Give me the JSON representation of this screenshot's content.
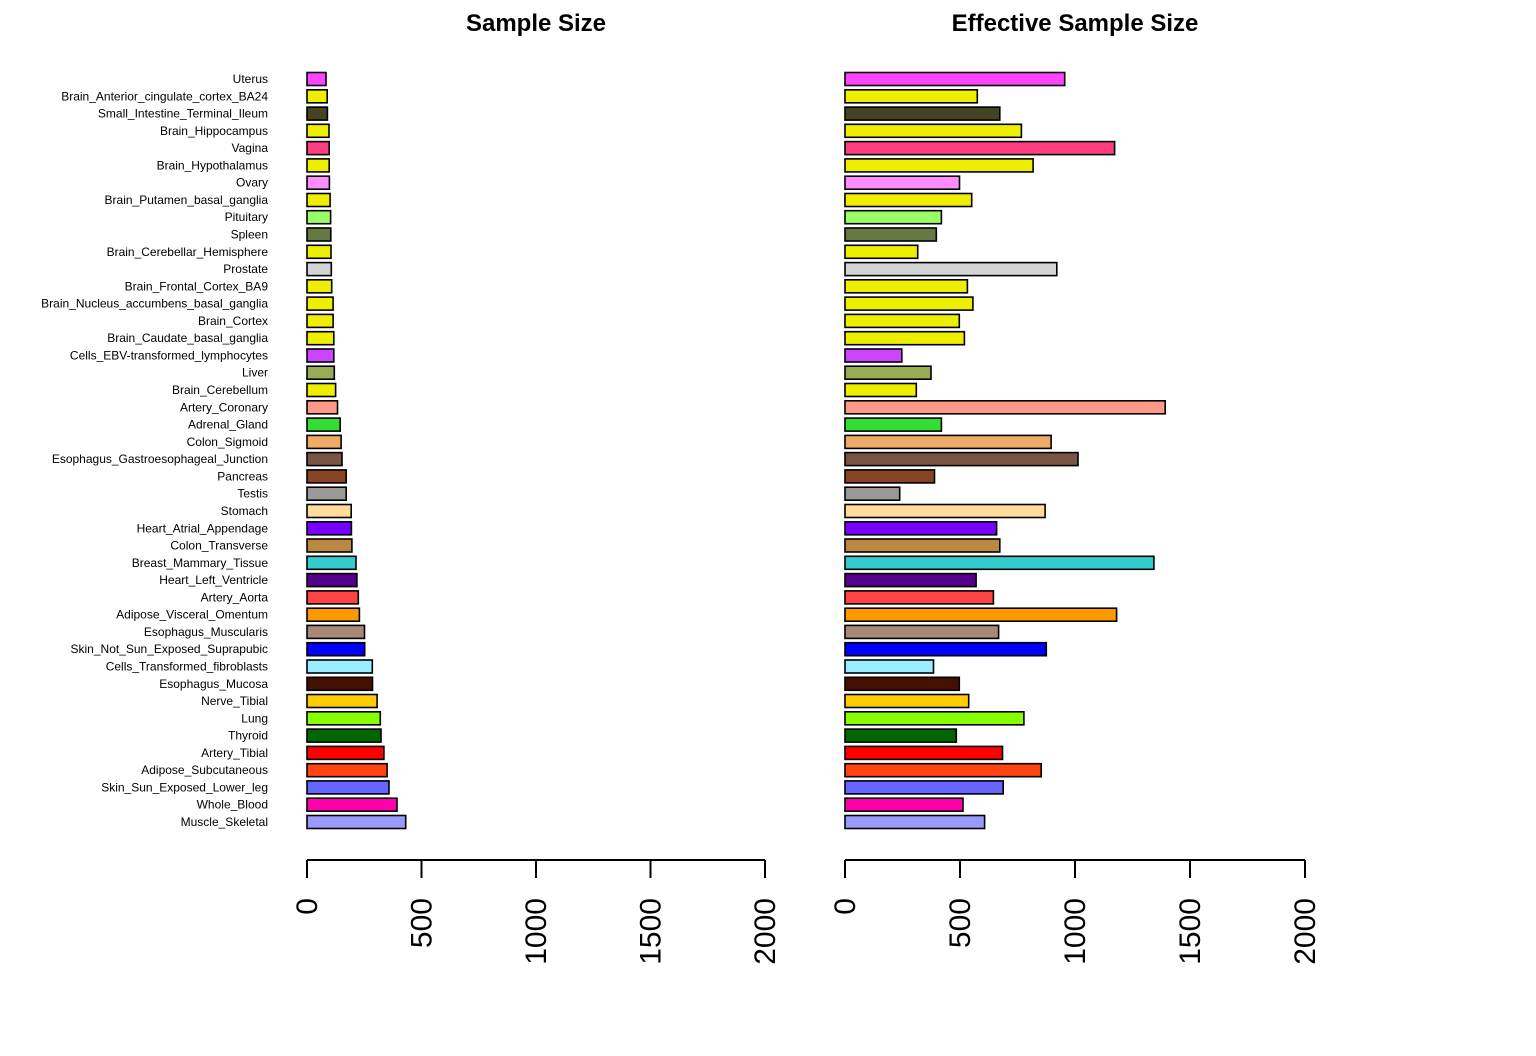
{
  "chart_data": [
    {
      "type": "bar",
      "orientation": "horizontal",
      "title": "Sample Size",
      "xlim": [
        0,
        2000
      ],
      "xticks": [
        0,
        500,
        1000,
        1500,
        2000
      ],
      "xtick_labels": [
        "0",
        "500",
        "1000",
        "1500",
        "2000"
      ],
      "grid": false,
      "categories": [
        "Uterus",
        "Brain_Anterior_cingulate_cortex_BA24",
        "Small_Intestine_Terminal_Ileum",
        "Brain_Hippocampus",
        "Vagina",
        "Brain_Hypothalamus",
        "Ovary",
        "Brain_Putamen_basal_ganglia",
        "Pituitary",
        "Spleen",
        "Brain_Cerebellar_Hemisphere",
        "Prostate",
        "Brain_Frontal_Cortex_BA9",
        "Brain_Nucleus_accumbens_basal_ganglia",
        "Brain_Cortex",
        "Brain_Caudate_basal_ganglia",
        "Cells_EBV-transformed_lymphocytes",
        "Liver",
        "Brain_Cerebellum",
        "Artery_Coronary",
        "Adrenal_Gland",
        "Colon_Sigmoid",
        "Esophagus_Gastroesophageal_Junction",
        "Pancreas",
        "Testis",
        "Stomach",
        "Heart_Atrial_Appendage",
        "Colon_Transverse",
        "Breast_Mammary_Tissue",
        "Heart_Left_Ventricle",
        "Artery_Aorta",
        "Adipose_Visceral_Omentum",
        "Esophagus_Muscularis",
        "Skin_Not_Sun_Exposed_Suprapubic",
        "Cells_Transformed_fibroblasts",
        "Esophagus_Mucosa",
        "Nerve_Tibial",
        "Lung",
        "Thyroid",
        "Artery_Tibial",
        "Adipose_Subcutaneous",
        "Skin_Sun_Exposed_Lower_leg",
        "Whole_Blood",
        "Muscle_Skeletal"
      ],
      "values": [
        83,
        88,
        89,
        96,
        97,
        97,
        98,
        101,
        103,
        104,
        105,
        106,
        108,
        114,
        114,
        117,
        117,
        119,
        125,
        133,
        145,
        149,
        153,
        171,
        171,
        193,
        194,
        196,
        214,
        218,
        224,
        229,
        251,
        252,
        285,
        286,
        306,
        320,
        323,
        336,
        350,
        358,
        393,
        431
      ],
      "colors": [
        "#FF44FF",
        "#EEEE00",
        "#444422",
        "#EEEE00",
        "#FF3E7F",
        "#EEEE00",
        "#FF8CFF",
        "#EEEE00",
        "#99FF66",
        "#667744",
        "#EEEE00",
        "#D4D4D4",
        "#EEEE00",
        "#EEEE00",
        "#EEEE00",
        "#EEEE00",
        "#CC44FF",
        "#99AA55",
        "#EEEE00",
        "#FF9988",
        "#33DD33",
        "#EEAA66",
        "#775544",
        "#884422",
        "#999999",
        "#FFDD99",
        "#7700FF",
        "#BB8844",
        "#33CCCC",
        "#550088",
        "#FF4444",
        "#FF9900",
        "#AA8877",
        "#0000FF",
        "#99EEFF",
        "#441100",
        "#FFCC00",
        "#88FF00",
        "#006600",
        "#FF0000",
        "#FF4411",
        "#6666FF",
        "#FF00AA",
        "#9999FF"
      ]
    },
    {
      "type": "bar",
      "orientation": "horizontal",
      "title": "Effective Sample Size",
      "xlim": [
        0,
        2000
      ],
      "xticks": [
        0,
        500,
        1000,
        1500,
        2000
      ],
      "xtick_labels": [
        "0",
        "500",
        "1000",
        "1500",
        "2000"
      ],
      "grid": false,
      "values": [
        955,
        575,
        673,
        767,
        1172,
        818,
        498,
        551,
        419,
        397,
        316,
        921,
        532,
        556,
        497,
        519,
        247,
        374,
        310,
        1392,
        419,
        896,
        1013,
        389,
        238,
        870,
        659,
        673,
        1343,
        570,
        645,
        1181,
        668,
        875,
        385,
        497,
        538,
        778,
        484,
        685,
        853,
        688,
        513,
        607
      ],
      "colors": [
        "#FF44FF",
        "#EEEE00",
        "#444422",
        "#EEEE00",
        "#FF3E7F",
        "#EEEE00",
        "#FF8CFF",
        "#EEEE00",
        "#99FF66",
        "#667744",
        "#EEEE00",
        "#D4D4D4",
        "#EEEE00",
        "#EEEE00",
        "#EEEE00",
        "#EEEE00",
        "#CC44FF",
        "#99AA55",
        "#EEEE00",
        "#FF9988",
        "#33DD33",
        "#EEAA66",
        "#775544",
        "#884422",
        "#999999",
        "#FFDD99",
        "#7700FF",
        "#BB8844",
        "#33CCCC",
        "#550088",
        "#FF4444",
        "#FF9900",
        "#AA8877",
        "#0000FF",
        "#99EEFF",
        "#441100",
        "#FFCC00",
        "#88FF00",
        "#006600",
        "#FF0000",
        "#FF4411",
        "#6666FF",
        "#FF00AA",
        "#9999FF"
      ]
    }
  ]
}
